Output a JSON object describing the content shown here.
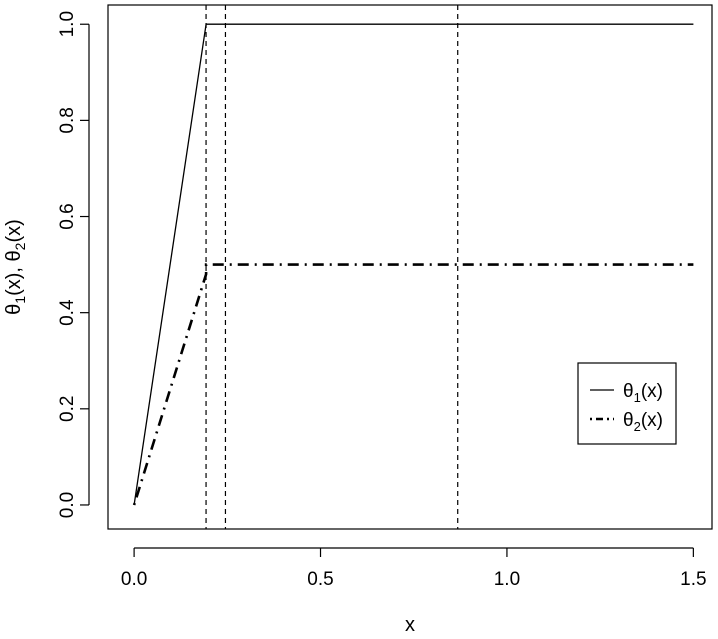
{
  "chart_data": {
    "type": "line",
    "xlabel": "x",
    "ylabel": "θ1(x), θ2(x)",
    "xlim": [
      -0.07,
      1.55
    ],
    "ylim": [
      -0.05,
      1.04
    ],
    "x_ticks": [
      0.0,
      0.5,
      1.0,
      1.5
    ],
    "x_tick_labels": [
      "0.0",
      "0.5",
      "1.0",
      "1.5"
    ],
    "y_ticks": [
      0.0,
      0.2,
      0.4,
      0.6,
      0.8,
      1.0
    ],
    "y_tick_labels": [
      "0.0",
      "0.2",
      "0.4",
      "0.6",
      "0.8",
      "1.0"
    ],
    "grid": false,
    "legend_position": "right",
    "series": [
      {
        "name": "θ1(x)",
        "base": "θ",
        "sub": "1",
        "suffix": "(x)",
        "line_style": "solid",
        "x": [
          0.0,
          0.193,
          1.5
        ],
        "y": [
          0.0,
          1.0,
          1.0
        ]
      },
      {
        "name": "θ2(x)",
        "base": "θ",
        "sub": "2",
        "suffix": "(x)",
        "line_style": "dotdash",
        "x": [
          0.0,
          0.193,
          0.193,
          1.5
        ],
        "y": [
          0.0,
          0.48,
          0.5,
          0.5
        ]
      }
    ],
    "vertical_lines": {
      "line_style": "dashed",
      "x": [
        0.193,
        0.245,
        0.868
      ]
    }
  }
}
